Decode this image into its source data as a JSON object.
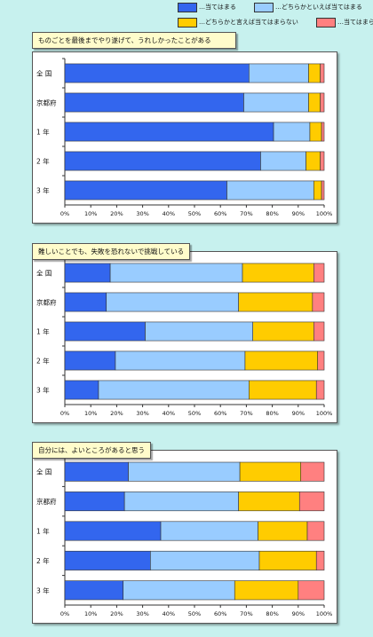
{
  "legend": [
    {
      "label": "…当てはまる",
      "color": "#3366ee"
    },
    {
      "label": "…どちらかといえば当てはまる",
      "color": "#99ccff"
    },
    {
      "label": "…どちらかと言えば当てはまらない",
      "color": "#ffcc00"
    },
    {
      "label": "…当てはまらない",
      "color": "#ff8080"
    }
  ],
  "chart_data": [
    {
      "type": "bar",
      "orientation": "horizontal",
      "stacked": true,
      "title": "ものごとを最後までやり遂げて、うれしかったことがある",
      "categories": [
        "全 国",
        "京都府",
        "1 年",
        "2 年",
        "3 年"
      ],
      "series": [
        {
          "name": "…当てはまる",
          "values": [
            71,
            69,
            80.5,
            75.5,
            62.5
          ]
        },
        {
          "name": "…どちらかといえば当てはまる",
          "values": [
            23,
            25,
            14,
            17.5,
            33.5
          ]
        },
        {
          "name": "…どちらかと言えば当てはまらない",
          "values": [
            4.5,
            4.5,
            4.5,
            5.5,
            3
          ]
        },
        {
          "name": "…当てはまらない",
          "values": [
            1.5,
            1.5,
            1,
            1.5,
            1
          ]
        }
      ],
      "xticks": [
        "0%",
        "10%",
        "20%",
        "30%",
        "40%",
        "50%",
        "60%",
        "70%",
        "80%",
        "90%",
        "100%"
      ],
      "xlim": [
        0,
        100
      ]
    },
    {
      "type": "bar",
      "orientation": "horizontal",
      "stacked": true,
      "title": "難しいことでも、失敗を恐れないで挑戦している",
      "categories": [
        "全 国",
        "京都府",
        "1 年",
        "2 年",
        "3 年"
      ],
      "series": [
        {
          "name": "…当てはまる",
          "values": [
            17.5,
            16,
            31,
            19.5,
            13
          ]
        },
        {
          "name": "…どちらかといえば当てはまる",
          "values": [
            51,
            51,
            41.5,
            50,
            58
          ]
        },
        {
          "name": "…どちらかと言えば当てはまらない",
          "values": [
            27.5,
            28.5,
            23.5,
            28,
            26
          ]
        },
        {
          "name": "…当てはまらない",
          "values": [
            4,
            4.5,
            4,
            2.5,
            3
          ]
        }
      ],
      "xticks": [
        "0%",
        "10%",
        "20%",
        "30%",
        "40%",
        "50%",
        "60%",
        "70%",
        "80%",
        "90%",
        "100%"
      ],
      "xlim": [
        0,
        100
      ]
    },
    {
      "type": "bar",
      "orientation": "horizontal",
      "stacked": true,
      "title": "自分には、よいところがあると思う",
      "categories": [
        "全 国",
        "京都府",
        "1 年",
        "2 年",
        "3 年"
      ],
      "series": [
        {
          "name": "…当てはまる",
          "values": [
            24.5,
            23,
            37,
            33,
            22.5
          ]
        },
        {
          "name": "…どちらかといえば当てはまる",
          "values": [
            43,
            44,
            37.5,
            42,
            43
          ]
        },
        {
          "name": "…どちらかと言えば当てはまらない",
          "values": [
            23.5,
            23.5,
            19,
            22,
            24.5
          ]
        },
        {
          "name": "…当てはまらない",
          "values": [
            9,
            9.5,
            6.5,
            3,
            10
          ]
        }
      ],
      "xticks": [
        "0%",
        "10%",
        "20%",
        "30%",
        "40%",
        "50%",
        "60%",
        "70%",
        "80%",
        "90%",
        "100%"
      ],
      "xlim": [
        0,
        100
      ]
    }
  ]
}
